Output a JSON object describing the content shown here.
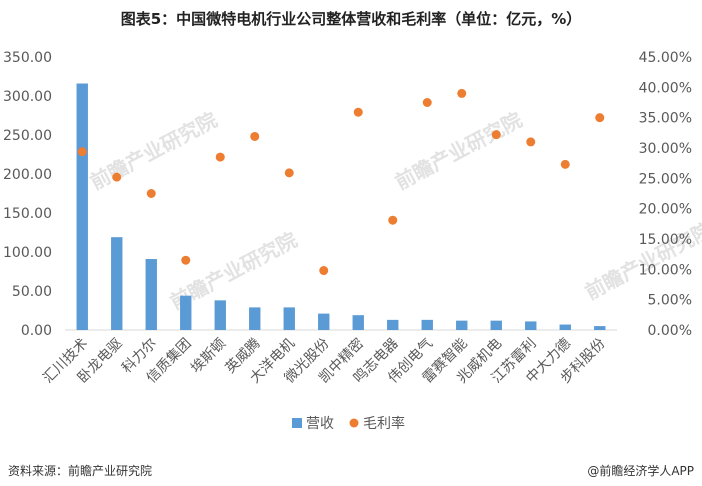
{
  "title": "图表5：中国微特电机行业公司整体营收和毛利率（单位：亿元，%）",
  "footer": {
    "source": "资料来源：前瞻产业研究院",
    "brand": "@前瞻经济学人APP"
  },
  "watermark": "前瞻产业研究院",
  "colors": {
    "bar": "#5b9bd5",
    "dot": "#ed7d31",
    "axis_text": "#595959",
    "axis_line": "#d9d9d9"
  },
  "chart_data": {
    "type": "bar",
    "categories": [
      "汇川技术",
      "卧龙电驱",
      "科力尔",
      "信质集团",
      "埃斯顿",
      "英威腾",
      "大洋电机",
      "微光股份",
      "凯中精密",
      "鸣志电器",
      "伟创电气",
      "雷赛智能",
      "兆威机电",
      "江苏雷利",
      "中大力德",
      "步科股份"
    ],
    "series": [
      {
        "name": "营收",
        "type": "bar",
        "axis": "left",
        "values": [
          316,
          119,
          91,
          44,
          38,
          29,
          29,
          21,
          19,
          13,
          13,
          12,
          12,
          11,
          7,
          5
        ]
      },
      {
        "name": "毛利率",
        "type": "scatter",
        "axis": "right",
        "values": [
          0.294,
          0.252,
          0.225,
          0.115,
          0.285,
          0.319,
          0.259,
          0.098,
          0.359,
          0.181,
          0.375,
          0.39,
          0.322,
          0.31,
          0.273,
          0.35
        ]
      }
    ],
    "y_left": {
      "min": 0,
      "max": 350,
      "step": 50,
      "tick_labels": [
        "0.00",
        "50.00",
        "100.00",
        "150.00",
        "200.00",
        "250.00",
        "300.00",
        "350.00"
      ]
    },
    "y_right": {
      "min": 0,
      "max": 0.45,
      "step": 0.05,
      "tick_labels": [
        "0.00%",
        "5.00%",
        "10.00%",
        "15.00%",
        "20.00%",
        "25.00%",
        "30.00%",
        "35.00%",
        "40.00%",
        "45.00%"
      ]
    },
    "legend": {
      "position": "bottom",
      "items": [
        "营收",
        "毛利率"
      ]
    },
    "grid": false
  }
}
